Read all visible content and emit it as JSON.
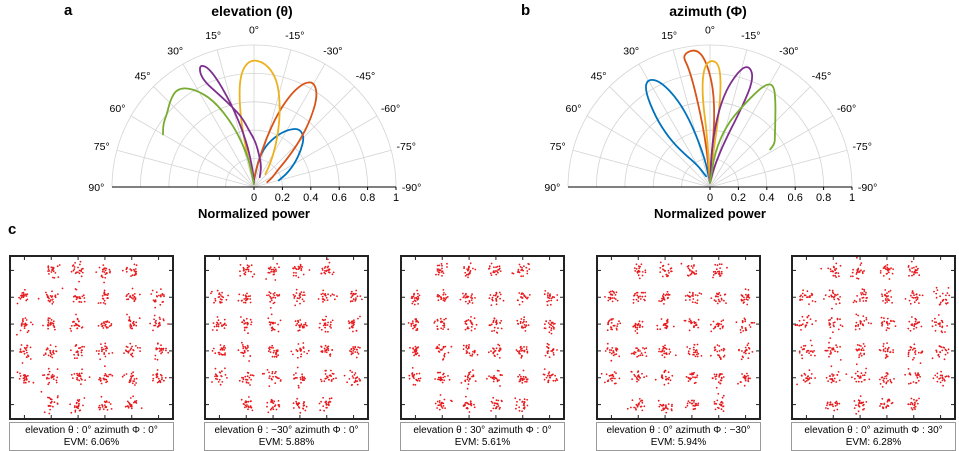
{
  "panels": {
    "a": {
      "letter": "a",
      "title": "elevation (θ)"
    },
    "b": {
      "letter": "b",
      "title": "azimuth (Φ)"
    },
    "c": {
      "letter": "c"
    }
  },
  "chart_data": [
    {
      "type": "polar",
      "panel": "a",
      "title": "elevation (θ)",
      "rlabel": "Normalized power",
      "rlim": [
        0,
        1
      ],
      "r_ticks": [
        "0",
        "0.2",
        "0.4",
        "0.6",
        "0.8",
        "1"
      ],
      "angle_ticks": [
        "90°",
        "75°",
        "60°",
        "45°",
        "30°",
        "15°",
        "0°",
        "-15°",
        "-30°",
        "-45°",
        "-60°",
        "-75°",
        "-90°"
      ],
      "angle_tick_values": [
        90,
        75,
        60,
        45,
        30,
        15,
        0,
        -15,
        -30,
        -45,
        -60,
        -75,
        -90
      ],
      "series": [
        {
          "color": "#0072BD",
          "points": [
            [
              0,
              0.05
            ],
            [
              -10,
              0.22
            ],
            [
              -18,
              0.33
            ],
            [
              -26,
              0.42
            ],
            [
              -32,
              0.48
            ],
            [
              -38,
              0.52
            ],
            [
              -45,
              0.5
            ],
            [
              -52,
              0.42
            ],
            [
              -60,
              0.33
            ],
            [
              -68,
              0.25
            ],
            [
              -75,
              0.18
            ]
          ]
        },
        {
          "color": "#D95319",
          "points": [
            [
              0,
              0.05
            ],
            [
              -8,
              0.15
            ],
            [
              -14,
              0.35
            ],
            [
              -18,
              0.55
            ],
            [
              -22,
              0.72
            ],
            [
              -26,
              0.82
            ],
            [
              -30,
              0.85
            ],
            [
              -35,
              0.78
            ],
            [
              -40,
              0.62
            ],
            [
              -45,
              0.45
            ],
            [
              -50,
              0.3
            ],
            [
              -55,
              0.2
            ],
            [
              -62,
              0.15
            ],
            [
              -70,
              0.1
            ]
          ]
        },
        {
          "color": "#EDB120",
          "points": [
            [
              10,
              0.1
            ],
            [
              12,
              0.35
            ],
            [
              10,
              0.6
            ],
            [
              7,
              0.8
            ],
            [
              2,
              0.9
            ],
            [
              -5,
              0.88
            ],
            [
              -12,
              0.78
            ],
            [
              -18,
              0.6
            ],
            [
              -24,
              0.42
            ],
            [
              -30,
              0.28
            ],
            [
              -36,
              0.18
            ],
            [
              -42,
              0.12
            ]
          ]
        },
        {
          "color": "#7E2F8E",
          "points": [
            [
              -2,
              0.03
            ],
            [
              5,
              0.15
            ],
            [
              10,
              0.35
            ],
            [
              15,
              0.6
            ],
            [
              20,
              0.88
            ],
            [
              24,
              0.95
            ],
            [
              26,
              0.85
            ],
            [
              20,
              0.68
            ],
            [
              15,
              0.58
            ],
            [
              10,
              0.5
            ],
            [
              5,
              0.4
            ],
            [
              -2,
              0.32
            ],
            [
              -10,
              0.22
            ],
            [
              -20,
              0.15
            ],
            [
              -30,
              0.08
            ]
          ]
        },
        {
          "color": "#77AC30",
          "points": [
            [
              2,
              0.02
            ],
            [
              10,
              0.2
            ],
            [
              18,
              0.45
            ],
            [
              25,
              0.68
            ],
            [
              32,
              0.82
            ],
            [
              38,
              0.88
            ],
            [
              44,
              0.85
            ],
            [
              50,
              0.8
            ],
            [
              55,
              0.78
            ],
            [
              60,
              0.74
            ]
          ]
        }
      ]
    },
    {
      "type": "polar",
      "panel": "b",
      "title": "azimuth (Φ)",
      "rlabel": "Normalized power",
      "rlim": [
        0,
        1
      ],
      "r_ticks": [
        "0",
        "0.2",
        "0.4",
        "0.6",
        "0.8",
        "1"
      ],
      "angle_ticks": [
        "90°",
        "75°",
        "60°",
        "45°",
        "30°",
        "15°",
        "0°",
        "-15°",
        "-30°",
        "-45°",
        "-60°",
        "-75°",
        "-90°"
      ],
      "angle_tick_values": [
        90,
        75,
        60,
        45,
        30,
        15,
        0,
        -15,
        -30,
        -45,
        -60,
        -75,
        -90
      ],
      "series": [
        {
          "color": "#0072BD",
          "points": [
            [
              0,
              0.03
            ],
            [
              10,
              0.2
            ],
            [
              16,
              0.45
            ],
            [
              20,
              0.65
            ],
            [
              25,
              0.82
            ],
            [
              30,
              0.88
            ],
            [
              34,
              0.82
            ],
            [
              38,
              0.62
            ],
            [
              40,
              0.45
            ],
            [
              38,
              0.3
            ],
            [
              30,
              0.18
            ],
            [
              20,
              0.08
            ]
          ]
        },
        {
          "color": "#D95319",
          "points": [
            [
              0,
              0.03
            ],
            [
              5,
              0.3
            ],
            [
              8,
              0.6
            ],
            [
              10,
              0.85
            ],
            [
              12,
              0.95
            ],
            [
              6,
              0.98
            ],
            [
              2,
              0.9
            ],
            [
              -2,
              0.7
            ],
            [
              -4,
              0.45
            ],
            [
              -3,
              0.25
            ],
            [
              -1,
              0.08
            ]
          ]
        },
        {
          "color": "#EDB120",
          "points": [
            [
              0,
              0.03
            ],
            [
              3,
              0.35
            ],
            [
              5,
              0.65
            ],
            [
              3,
              0.85
            ],
            [
              -1,
              0.9
            ],
            [
              -5,
              0.85
            ],
            [
              -7,
              0.6
            ],
            [
              -6,
              0.3
            ],
            [
              -2,
              0.08
            ]
          ]
        },
        {
          "color": "#7E2F8E",
          "points": [
            [
              0,
              0.03
            ],
            [
              -3,
              0.35
            ],
            [
              -8,
              0.65
            ],
            [
              -14,
              0.85
            ],
            [
              -18,
              0.9
            ],
            [
              -22,
              0.82
            ],
            [
              -22,
              0.62
            ],
            [
              -18,
              0.35
            ],
            [
              -12,
              0.15
            ],
            [
              -4,
              0.04
            ]
          ]
        },
        {
          "color": "#77AC30",
          "points": [
            [
              0,
              0.03
            ],
            [
              -8,
              0.25
            ],
            [
              -15,
              0.45
            ],
            [
              -22,
              0.62
            ],
            [
              -28,
              0.82
            ],
            [
              -32,
              0.85
            ],
            [
              -38,
              0.75
            ],
            [
              -45,
              0.65
            ],
            [
              -52,
              0.58
            ],
            [
              -56,
              0.55
            ],
            [
              -58,
              0.5
            ]
          ]
        }
      ]
    },
    {
      "type": "scatter",
      "panel": "c",
      "subtype": "constellation",
      "constellations": [
        {
          "line1": "elevation θ : 0°  azimuth Φ : 0°",
          "line2": "EVM: 6.06%",
          "evm": 6.06
        },
        {
          "line1": "elevation θ : −30°  azimuth Φ : 0°",
          "line2": "EVM: 5.88%",
          "evm": 5.88
        },
        {
          "line1": "elevation θ : 30°  azimuth Φ : 0°",
          "line2": "EVM: 5.61%",
          "evm": 5.61
        },
        {
          "line1": "elevation θ : 0°  azimuth Φ : −30°",
          "line2": "EVM: 5.94%",
          "evm": 5.94
        },
        {
          "line1": "elevation θ : 0°  azimuth Φ : 30°",
          "line2": "EVM: 6.28%",
          "evm": 6.28
        }
      ],
      "grid_size": 6,
      "missing_corners": true,
      "point_color": "#E8191C"
    }
  ],
  "colors": {
    "grid": "#d4d4d4",
    "axis": "#000000"
  }
}
